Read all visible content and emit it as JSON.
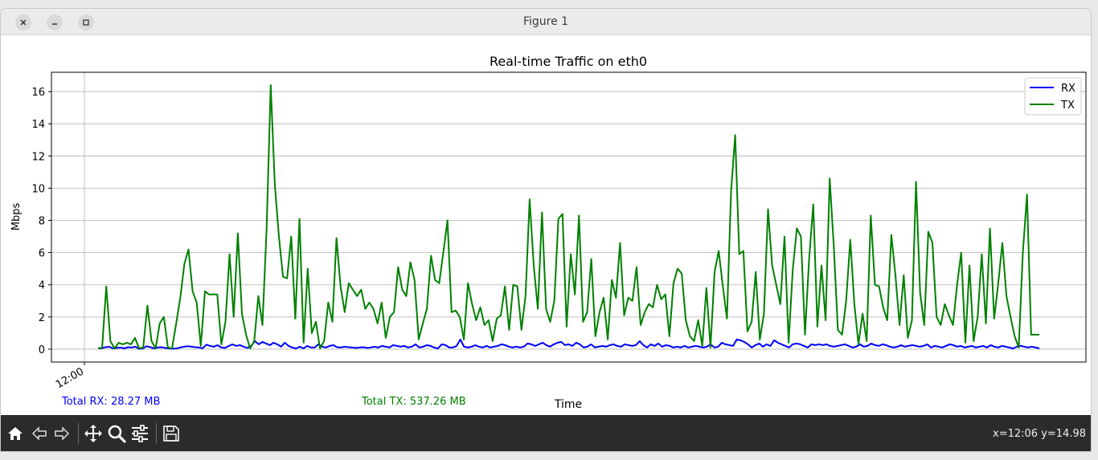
{
  "window": {
    "title": "Figure 1"
  },
  "chart_data": {
    "type": "line",
    "title": "Real-time Traffic on eth0",
    "xlabel": "Time",
    "ylabel": "Mbps",
    "ylim": [
      -0.8,
      17.2
    ],
    "yticks": [
      0,
      2,
      4,
      6,
      8,
      10,
      12,
      14,
      16
    ],
    "xtick_labels": [
      "12:00"
    ],
    "grid": true,
    "legend_position": "top-right",
    "series": [
      {
        "name": "RX",
        "color": "#0000ff",
        "values": [
          0.05,
          0.06,
          0.12,
          0.15,
          0.05,
          0.08,
          0.1,
          0.05,
          0.12,
          0.1,
          0.15,
          0.02,
          0.05,
          0.18,
          0.12,
          0.05,
          0.1,
          0.12,
          0.08,
          0.05,
          0.03,
          0.05,
          0.1,
          0.15,
          0.18,
          0.15,
          0.12,
          0.1,
          0.06,
          0.28,
          0.2,
          0.15,
          0.25,
          0.1,
          0.08,
          0.2,
          0.3,
          0.2,
          0.25,
          0.15,
          0.08,
          0.2,
          0.5,
          0.3,
          0.45,
          0.35,
          0.25,
          0.4,
          0.3,
          0.15,
          0.4,
          0.2,
          0.1,
          0.05,
          0.15,
          0.05,
          0.2,
          0.1,
          0.1,
          0.3,
          0.15,
          0.1,
          0.2,
          0.25,
          0.12,
          0.1,
          0.15,
          0.12,
          0.1,
          0.08,
          0.1,
          0.12,
          0.08,
          0.1,
          0.15,
          0.1,
          0.2,
          0.15,
          0.1,
          0.25,
          0.2,
          0.15,
          0.2,
          0.1,
          0.15,
          0.3,
          0.1,
          0.15,
          0.25,
          0.2,
          0.1,
          0.05,
          0.3,
          0.25,
          0.1,
          0.1,
          0.2,
          0.6,
          0.15,
          0.1,
          0.15,
          0.25,
          0.15,
          0.1,
          0.2,
          0.1,
          0.15,
          0.2,
          0.3,
          0.25,
          0.15,
          0.1,
          0.15,
          0.1,
          0.15,
          0.35,
          0.3,
          0.2,
          0.3,
          0.4,
          0.25,
          0.15,
          0.3,
          0.4,
          0.45,
          0.25,
          0.3,
          0.2,
          0.4,
          0.3,
          0.1,
          0.15,
          0.3,
          0.1,
          0.15,
          0.2,
          0.15,
          0.25,
          0.3,
          0.2,
          0.15,
          0.3,
          0.25,
          0.2,
          0.25,
          0.5,
          0.25,
          0.1,
          0.3,
          0.2,
          0.35,
          0.15,
          0.25,
          0.2,
          0.1,
          0.15,
          0.1,
          0.2,
          0.1,
          0.15,
          0.2,
          0.15,
          0.1,
          0.15,
          0.3,
          0.1,
          0.15,
          0.4,
          0.3,
          0.25,
          0.2,
          0.6,
          0.55,
          0.45,
          0.3,
          0.1,
          0.25,
          0.35,
          0.15,
          0.3,
          0.2,
          0.55,
          0.4,
          0.3,
          0.2,
          0.1,
          0.3,
          0.35,
          0.3,
          0.2,
          0.1,
          0.3,
          0.25,
          0.3,
          0.25,
          0.3,
          0.2,
          0.15,
          0.2,
          0.25,
          0.3,
          0.2,
          0.1,
          0.15,
          0.3,
          0.15,
          0.2,
          0.35,
          0.25,
          0.2,
          0.3,
          0.25,
          0.15,
          0.1,
          0.15,
          0.25,
          0.15,
          0.2,
          0.25,
          0.2,
          0.15,
          0.2,
          0.3,
          0.1,
          0.2,
          0.15,
          0.1,
          0.2,
          0.3,
          0.25,
          0.15,
          0.2,
          0.1,
          0.15,
          0.2,
          0.1,
          0.15,
          0.2,
          0.1,
          0.25,
          0.15,
          0.1,
          0.2,
          0.15,
          0.1,
          0.05,
          0.15,
          0.2,
          0.15,
          0.1,
          0.15,
          0.1,
          0.05
        ]
      },
      {
        "name": "TX",
        "color": "#008000",
        "values": [
          0.05,
          0.1,
          3.9,
          0.5,
          0.05,
          0.4,
          0.3,
          0.4,
          0.3,
          0.7,
          0.05,
          0.1,
          2.7,
          0.5,
          0.05,
          1.6,
          2.0,
          0.1,
          0.05,
          1.6,
          3.2,
          5.3,
          6.2,
          3.6,
          2.9,
          0.2,
          3.6,
          3.4,
          3.4,
          3.4,
          0.3,
          1.7,
          5.9,
          2.0,
          7.2,
          2.2,
          0.9,
          0.05,
          0.5,
          3.3,
          1.5,
          7.5,
          16.4,
          10.2,
          7.0,
          4.5,
          4.4,
          7.0,
          1.9,
          8.1,
          0.4,
          5.0,
          1.0,
          1.7,
          0.05,
          0.5,
          2.9,
          1.7,
          6.9,
          3.9,
          2.3,
          4.1,
          3.7,
          3.3,
          3.7,
          2.5,
          2.9,
          2.5,
          1.6,
          2.9,
          0.7,
          2.0,
          2.3,
          5.1,
          3.7,
          3.3,
          5.4,
          4.3,
          0.6,
          1.6,
          2.5,
          5.8,
          4.3,
          4.1,
          6.0,
          8.0,
          2.3,
          2.4,
          2.0,
          0.6,
          4.1,
          2.8,
          1.8,
          2.6,
          1.5,
          1.8,
          0.5,
          1.9,
          2.1,
          3.9,
          1.2,
          4.0,
          3.9,
          1.2,
          3.3,
          9.3,
          5.2,
          2.5,
          8.5,
          2.5,
          1.7,
          3.0,
          8.1,
          8.4,
          1.4,
          5.9,
          3.4,
          8.3,
          1.7,
          2.3,
          5.6,
          0.8,
          2.3,
          3.2,
          0.6,
          4.3,
          3.2,
          6.6,
          2.1,
          3.2,
          3.0,
          5.1,
          1.5,
          2.3,
          2.8,
          2.6,
          4.0,
          3.1,
          3.4,
          0.8,
          4.1,
          5.0,
          4.7,
          1.8,
          0.8,
          0.5,
          1.8,
          0.2,
          3.8,
          0.1,
          4.8,
          6.1,
          3.9,
          1.9,
          9.8,
          13.3,
          5.9,
          6.1,
          1.1,
          1.7,
          4.8,
          0.6,
          2.2,
          8.7,
          5.2,
          4.0,
          2.8,
          7.0,
          0.4,
          4.9,
          7.5,
          7.0,
          0.9,
          5.6,
          9.0,
          1.4,
          5.2,
          1.8,
          10.6,
          6.4,
          1.2,
          0.9,
          3.0,
          6.8,
          2.8,
          0.3,
          2.2,
          0.5,
          8.3,
          4.0,
          3.9,
          2.6,
          1.8,
          7.1,
          4.6,
          1.5,
          4.6,
          0.7,
          1.8,
          10.4,
          3.5,
          1.5,
          7.3,
          6.6,
          2.0,
          1.5,
          2.8,
          2.1,
          1.5,
          4.0,
          6.0,
          0.4,
          5.2,
          0.5,
          2.0,
          5.9,
          1.6,
          7.5,
          1.9,
          4.1,
          6.6,
          3.3,
          2.0,
          0.8,
          0.1,
          6.0,
          9.6,
          0.9,
          0.9,
          0.9
        ]
      }
    ],
    "annotations": {
      "total_rx": "Total RX: 28.27 MB",
      "total_tx": "Total TX: 537.26 MB"
    }
  },
  "toolbar": {
    "buttons": [
      {
        "name": "home-button",
        "icon": "home-icon"
      },
      {
        "name": "back-button",
        "icon": "arrow-left-icon"
      },
      {
        "name": "forward-button",
        "icon": "arrow-right-icon"
      },
      {
        "name": "pan-button",
        "icon": "move-icon"
      },
      {
        "name": "zoom-button",
        "icon": "magnifier-icon"
      },
      {
        "name": "configure-subplots-button",
        "icon": "sliders-icon"
      },
      {
        "name": "save-button",
        "icon": "floppy-disk-icon"
      }
    ],
    "coords": "x=12:06 y=14.98"
  }
}
